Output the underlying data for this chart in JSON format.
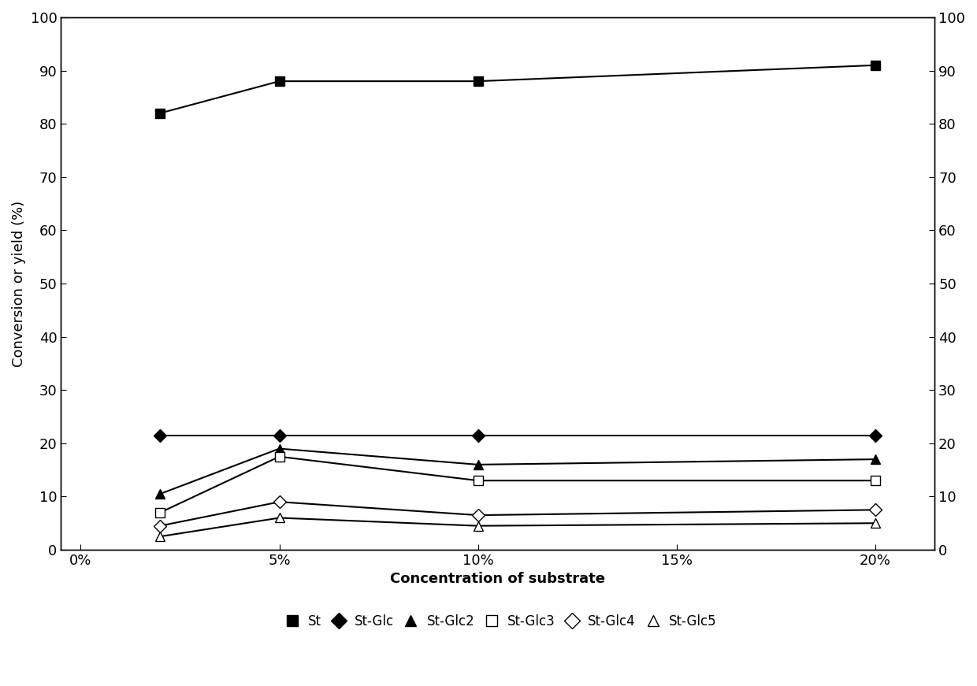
{
  "x_data": [
    2,
    5,
    10,
    20
  ],
  "x_tick_positions": [
    0,
    5,
    10,
    15,
    20
  ],
  "x_tick_labels": [
    "0%",
    "5%",
    "10%",
    "15%",
    "20%"
  ],
  "x_lim": [
    -0.5,
    21.5
  ],
  "series": {
    "St": {
      "values": [
        82,
        88,
        88,
        91
      ],
      "marker": "s",
      "marker_filled": true,
      "label": "St"
    },
    "St-Glc": {
      "values": [
        21.5,
        21.5,
        21.5,
        21.5
      ],
      "marker": "D",
      "marker_filled": true,
      "label": "St-Glc"
    },
    "St-Glc2": {
      "values": [
        10.5,
        19,
        16,
        17
      ],
      "marker": "^",
      "marker_filled": true,
      "label": "St-Glc2"
    },
    "St-Glc3": {
      "values": [
        7,
        17.5,
        13,
        13
      ],
      "marker": "s",
      "marker_filled": false,
      "label": "St-Glc3"
    },
    "St-Glc4": {
      "values": [
        4.5,
        9,
        6.5,
        7.5
      ],
      "marker": "D",
      "marker_filled": false,
      "label": "St-Glc4"
    },
    "St-Glc5": {
      "values": [
        2.5,
        6,
        4.5,
        5
      ],
      "marker": "^",
      "marker_filled": false,
      "label": "St-Glc5"
    }
  },
  "series_order": [
    "St",
    "St-Glc",
    "St-Glc2",
    "St-Glc3",
    "St-Glc4",
    "St-Glc5"
  ],
  "ylabel_left": "Conversion or yield (%)",
  "xlabel": "Concentration of substrate",
  "ylim": [
    0,
    100
  ],
  "yticks": [
    0,
    10,
    20,
    30,
    40,
    50,
    60,
    70,
    80,
    90,
    100
  ],
  "marker_size": 8,
  "linewidth": 1.5,
  "font_size_ticks": 13,
  "font_size_label": 13,
  "font_size_legend": 12
}
